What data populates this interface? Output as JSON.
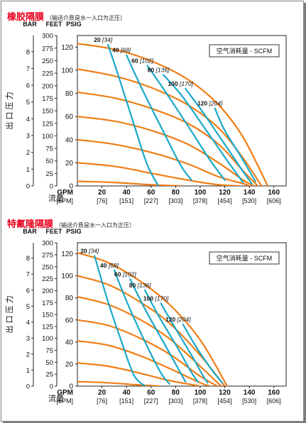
{
  "chart_data": [
    {
      "type": "line",
      "title": "橡胶隔膜",
      "subtitle": "（输送介质是水一入口为正压）",
      "legend_label": "空气消耗量 - SCFM",
      "legend_position": "top-right",
      "y_axis_title": "出 口 压 力",
      "x_axis_title": "流量",
      "unit_headers": [
        "BAR",
        "FEET",
        "PSIG"
      ],
      "x_unit_label": "GPM",
      "x_unit_label_secondary": "[LPM]",
      "x_ticks": [
        20,
        40,
        60,
        80,
        100,
        120,
        140,
        160
      ],
      "x_ticks_lpm": [
        "[76]",
        "[151]",
        "[227]",
        "[303]",
        "[378]",
        "[454]",
        "[530]",
        "[606]"
      ],
      "xlim": [
        0,
        170
      ],
      "ylim_psig": [
        0,
        130
      ],
      "psig_ticks": [
        0,
        20,
        40,
        60,
        80,
        100,
        120
      ],
      "feet_ticks": [
        0,
        25,
        50,
        75,
        100,
        125,
        150,
        175,
        200,
        225,
        250,
        275,
        300
      ],
      "bar_ticks": [
        0,
        1,
        2,
        3,
        4,
        5,
        6,
        7,
        8
      ],
      "grid": false,
      "pressure_curves": [
        {
          "x": [
            0,
            30,
            60,
            90,
            115,
            135,
            155
          ],
          "y": [
            123,
            118,
            108,
            92,
            70,
            42,
            0
          ]
        },
        {
          "x": [
            0,
            30,
            60,
            90,
            115,
            135,
            150
          ],
          "y": [
            101,
            95,
            85,
            70,
            50,
            24,
            0
          ]
        },
        {
          "x": [
            0,
            30,
            60,
            90,
            115,
            135,
            147
          ],
          "y": [
            81,
            76,
            67,
            54,
            36,
            13,
            0
          ]
        },
        {
          "x": [
            0,
            30,
            60,
            90,
            115,
            135,
            144
          ],
          "y": [
            60,
            56,
            48,
            36,
            20,
            5,
            0
          ]
        },
        {
          "x": [
            0,
            30,
            60,
            90,
            115,
            135,
            140
          ],
          "y": [
            40,
            36,
            29,
            19,
            8,
            2,
            0
          ]
        },
        {
          "x": [
            0,
            30,
            60,
            90,
            115,
            132
          ],
          "y": [
            20,
            17,
            11,
            5,
            1,
            0
          ]
        },
        {
          "x": [
            0,
            30,
            60,
            85
          ],
          "y": [
            4,
            3,
            1,
            0
          ]
        }
      ],
      "air_curves": [
        {
          "label": "20 [34]",
          "x": [
            25,
            35,
            47,
            57,
            66
          ],
          "y": [
            122,
            90,
            50,
            18,
            0
          ]
        },
        {
          "label": "40 [68]",
          "x": [
            40,
            53,
            70,
            84,
            93
          ],
          "y": [
            113,
            83,
            47,
            18,
            5
          ]
        },
        {
          "label": "60 [102]",
          "x": [
            57,
            70,
            90,
            107,
            120
          ],
          "y": [
            104,
            84,
            52,
            24,
            5
          ]
        },
        {
          "label": "80 [136]",
          "x": [
            70,
            85,
            105,
            122,
            135
          ],
          "y": [
            96,
            78,
            48,
            22,
            3
          ]
        },
        {
          "label": "100 [170]",
          "x": [
            88,
            102,
            120,
            134,
            142
          ],
          "y": [
            84,
            64,
            36,
            14,
            2
          ]
        },
        {
          "label": "120 [204]",
          "x": [
            112,
            120,
            134,
            145
          ],
          "y": [
            67,
            48,
            24,
            4
          ]
        }
      ],
      "colors": {
        "pressure_curves": "#f07d16",
        "air_curves": "#1aa8c8"
      }
    },
    {
      "type": "line",
      "title": "特氟隆隔膜",
      "subtitle": "（输送介质是水一入口为正压）",
      "legend_label": "空气消耗量 - SCFM",
      "legend_position": "top-right",
      "y_axis_title": "出 口 压 力",
      "x_axis_title": "流量",
      "unit_headers": [
        "BAR",
        "FEET",
        "PSIG"
      ],
      "x_unit_label": "GPM",
      "x_unit_label_secondary": "[LPM]",
      "x_ticks": [
        20,
        40,
        60,
        80,
        100,
        120,
        140,
        160
      ],
      "x_ticks_lpm": [
        "[76]",
        "[151]",
        "[227]",
        "[303]",
        "[378]",
        "[454]",
        "[530]",
        "[606]"
      ],
      "xlim": [
        0,
        170
      ],
      "ylim_psig": [
        0,
        130
      ],
      "psig_ticks": [
        0,
        20,
        40,
        60,
        80,
        100,
        120
      ],
      "feet_ticks": [
        0,
        25,
        50,
        75,
        100,
        125,
        150,
        175,
        200,
        225,
        250,
        275,
        300
      ],
      "bar_ticks": [
        0,
        1,
        2,
        3,
        4,
        5,
        6,
        7,
        8
      ],
      "grid": false,
      "pressure_curves": [
        {
          "x": [
            0,
            25,
            50,
            75,
            100,
            122
          ],
          "y": [
            121,
            112,
            96,
            74,
            42,
            0
          ]
        },
        {
          "x": [
            0,
            25,
            50,
            75,
            100,
            120
          ],
          "y": [
            100,
            92,
            77,
            57,
            28,
            0
          ]
        },
        {
          "x": [
            0,
            25,
            50,
            75,
            100,
            117
          ],
          "y": [
            81,
            74,
            61,
            43,
            18,
            0
          ]
        },
        {
          "x": [
            0,
            25,
            50,
            75,
            100,
            114
          ],
          "y": [
            60,
            55,
            44,
            29,
            9,
            0
          ]
        },
        {
          "x": [
            0,
            25,
            50,
            75,
            100,
            108
          ],
          "y": [
            41,
            37,
            28,
            16,
            3,
            0
          ]
        },
        {
          "x": [
            0,
            25,
            50,
            75,
            100
          ],
          "y": [
            21,
            18,
            12,
            5,
            0
          ]
        },
        {
          "x": [
            0,
            25,
            50,
            67
          ],
          "y": [
            4,
            3,
            1,
            0
          ]
        }
      ],
      "air_curves": [
        {
          "label": "20 [34]",
          "x": [
            14,
            24,
            36,
            46,
            55
          ],
          "y": [
            118,
            80,
            40,
            10,
            0
          ]
        },
        {
          "label": "40 [68]",
          "x": [
            30,
            42,
            56,
            68,
            75
          ],
          "y": [
            105,
            72,
            38,
            12,
            2
          ]
        },
        {
          "label": "60 [102]",
          "x": [
            43,
            55,
            70,
            82,
            88
          ],
          "y": [
            97,
            70,
            40,
            16,
            4
          ]
        },
        {
          "label": "80 [136]",
          "x": [
            55,
            67,
            82,
            92,
            98
          ],
          "y": [
            87,
            62,
            34,
            14,
            4
          ]
        },
        {
          "label": "100 [170]",
          "x": [
            68,
            80,
            94,
            102,
            106
          ],
          "y": [
            75,
            52,
            26,
            10,
            3
          ]
        },
        {
          "label": "120 [204]",
          "x": [
            86,
            97,
            110,
            118
          ],
          "y": [
            56,
            35,
            14,
            3
          ]
        }
      ],
      "colors": {
        "pressure_curves": "#f07d16",
        "air_curves": "#1aa8c8"
      }
    }
  ]
}
